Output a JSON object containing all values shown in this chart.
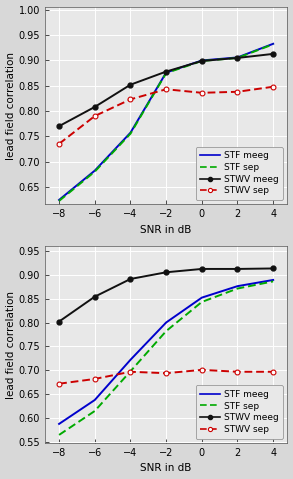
{
  "snr": [
    -8,
    -6,
    -4,
    -2,
    0,
    2,
    4
  ],
  "top": {
    "ylim": [
      0.615,
      1.005
    ],
    "yticks": [
      0.65,
      0.7,
      0.75,
      0.8,
      0.85,
      0.9,
      0.95,
      1.0
    ],
    "STF_meeg": [
      0.624,
      0.682,
      0.757,
      0.876,
      0.9,
      0.906,
      0.933
    ],
    "STF_sep": [
      0.622,
      0.68,
      0.755,
      0.875,
      0.899,
      0.905,
      0.932
    ],
    "STWV_meeg": [
      0.77,
      0.808,
      0.852,
      0.878,
      0.899,
      0.905,
      0.913
    ],
    "STWV_sep": [
      0.735,
      0.79,
      0.823,
      0.843,
      0.836,
      0.838,
      0.848
    ]
  },
  "bottom": {
    "ylim": [
      0.548,
      0.96
    ],
    "yticks": [
      0.55,
      0.6,
      0.65,
      0.7,
      0.75,
      0.8,
      0.85,
      0.9,
      0.95
    ],
    "STF_meeg": [
      0.588,
      0.638,
      0.722,
      0.8,
      0.852,
      0.876,
      0.889
    ],
    "STF_sep": [
      0.565,
      0.615,
      0.698,
      0.782,
      0.843,
      0.871,
      0.886
    ],
    "STWV_meeg": [
      0.802,
      0.854,
      0.891,
      0.905,
      0.912,
      0.912,
      0.913
    ],
    "STWV_sep": [
      0.672,
      0.682,
      0.697,
      0.694,
      0.701,
      0.697,
      0.697
    ]
  },
  "colors": {
    "STF_meeg": "#0000cc",
    "STF_sep": "#00aa00",
    "STWV_meeg": "#111111",
    "STWV_sep": "#cc0000"
  },
  "legend_labels": [
    "STF meeg",
    "STF sep",
    "STWV meeg",
    "STWV sep"
  ],
  "xlabel": "SNR in dB",
  "ylabel": "lead field correlation",
  "bg_color": "#e8e8e8",
  "grid_color": "#ffffff",
  "label_fontsize": 7.5,
  "tick_fontsize": 7,
  "legend_fontsize": 6.5
}
